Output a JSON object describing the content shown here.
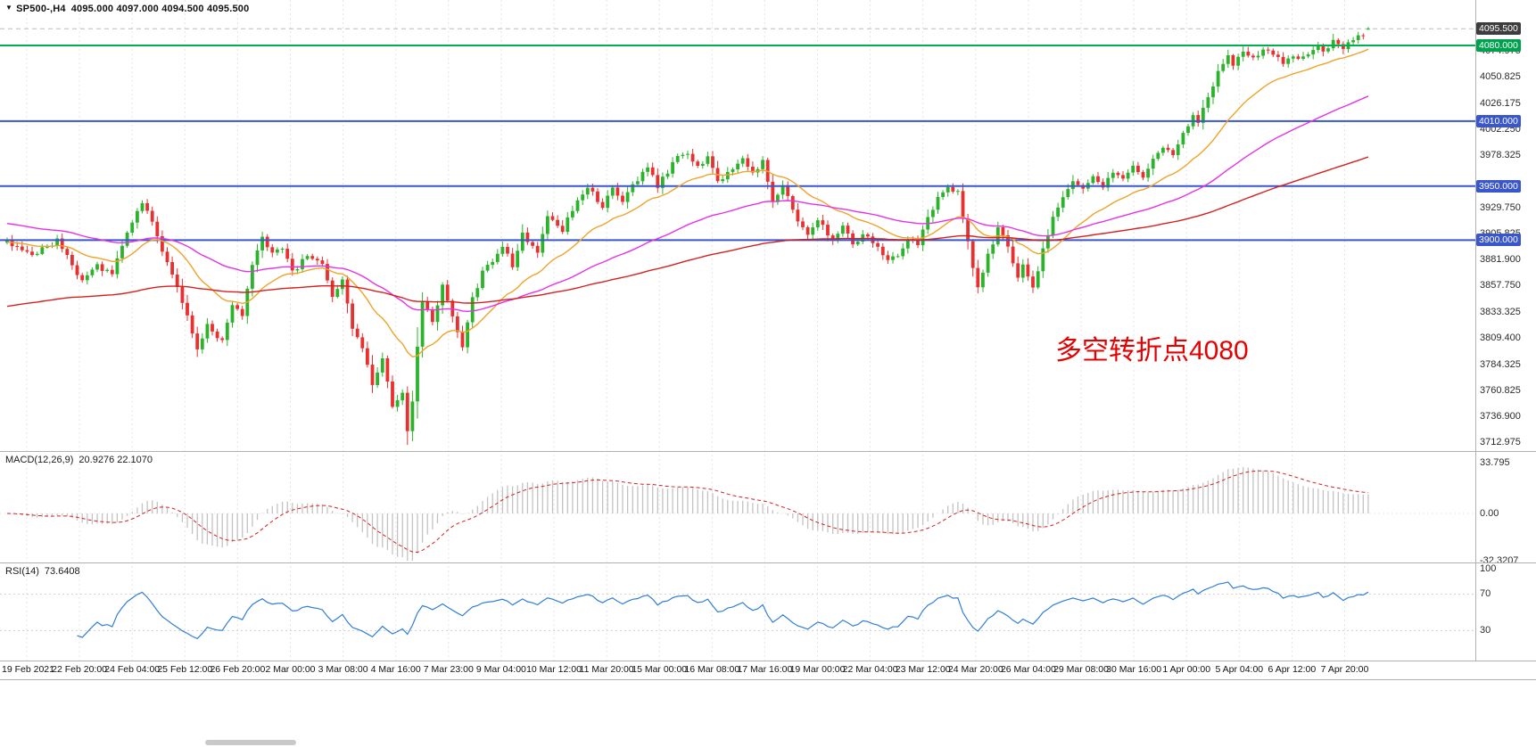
{
  "quote_bar": {
    "marker": "▼",
    "symbol": "SP500-,H4",
    "ohlc": "4095.000 4097.000 4094.500 4095.500"
  },
  "annotation": {
    "text": "多空转折点4080",
    "color": "#e60000"
  },
  "price_axis": {
    "ticks": [
      {
        "text": "4074.975",
        "value": 4074.975
      },
      {
        "text": "4050.825",
        "value": 4050.825
      },
      {
        "text": "4026.175",
        "value": 4026.175
      },
      {
        "text": "4002.250",
        "value": 4002.25
      },
      {
        "text": "3978.325",
        "value": 3978.325
      },
      {
        "text": "3929.750",
        "value": 3929.75
      },
      {
        "text": "3905.825",
        "value": 3905.825
      },
      {
        "text": "3881.900",
        "value": 3881.9
      },
      {
        "text": "3857.750",
        "value": 3857.75
      },
      {
        "text": "3833.325",
        "value": 3833.325
      },
      {
        "text": "3809.400",
        "value": 3809.4
      },
      {
        "text": "3784.325",
        "value": 3784.325
      },
      {
        "text": "3760.825",
        "value": 3760.825
      },
      {
        "text": "3736.900",
        "value": 3736.9
      },
      {
        "text": "3712.975",
        "value": 3712.975
      }
    ],
    "tags": [
      {
        "text": "4095.500",
        "value": 4095.5,
        "bg": "#3d3d3d"
      },
      {
        "text": "4080.000",
        "value": 4080,
        "bg": "#00a14e"
      },
      {
        "text": "4010.000",
        "value": 4010,
        "bg": "#3a56cc"
      },
      {
        "text": "3950.000",
        "value": 3950,
        "bg": "#3a56cc"
      },
      {
        "text": "3900.000",
        "value": 3900,
        "bg": "#3a56cc"
      }
    ]
  },
  "time_axis": {
    "labels": [
      "19 Feb 2021",
      "22 Feb 20:00",
      "24 Feb 04:00",
      "25 Feb 12:00",
      "26 Feb 20:00",
      "2 Mar 00:00",
      "3 Mar 08:00",
      "4 Mar 16:00",
      "7 Mar 23:00",
      "9 Mar 04:00",
      "10 Mar 12:00",
      "11 Mar 20:00",
      "15 Mar 00:00",
      "16 Mar 08:00",
      "17 Mar 16:00",
      "19 Mar 00:00",
      "22 Mar 04:00",
      "23 Mar 12:00",
      "24 Mar 20:00",
      "26 Mar 04:00",
      "29 Mar 08:00",
      "30 Mar 16:00",
      "1 Apr 00:00",
      "5 Apr 04:00",
      "6 Apr 12:00",
      "7 Apr 20:00"
    ]
  },
  "panels": {
    "macd": {
      "title": "MACD(12,26,9)",
      "values": "20.9276 22.1070",
      "ticks": [
        {
          "text": "33.795",
          "value": 33.795
        },
        {
          "text": "0.00",
          "value": 0
        },
        {
          "text": "-32.3207",
          "value": -32.3207
        }
      ]
    },
    "rsi": {
      "title": "RSI(14)",
      "values": "73.6408",
      "ticks": [
        {
          "text": "100",
          "value": 100
        },
        {
          "text": "70",
          "value": 70
        },
        {
          "text": "30",
          "value": 30
        }
      ]
    }
  },
  "colors": {
    "background": "#ffffff",
    "grid": "#e4e4e4",
    "separator": "#b0b0b0",
    "axis_text": "#2a2a2a"
  },
  "chart_data": {
    "type": "candlestick",
    "symbol": "SP500",
    "timeframe": "H4",
    "title": "SP500-,H4",
    "x_range": {
      "start": "19 Feb 2021",
      "end": "7 Apr 2021",
      "bars": 273
    },
    "y_range": {
      "min": 3713,
      "max": 4122
    },
    "last_quote": {
      "open": 4095.0,
      "high": 4097.0,
      "low": 4094.5,
      "close": 4095.5
    },
    "current_price": 4095.5,
    "up_color": "#2bb32b",
    "down_color": "#e83030",
    "close_path_anchors": [
      [
        0,
        3898
      ],
      [
        5,
        3886
      ],
      [
        10,
        3900
      ],
      [
        15,
        3862
      ],
      [
        18,
        3876
      ],
      [
        21,
        3869
      ],
      [
        25,
        3918
      ],
      [
        27,
        3936
      ],
      [
        29,
        3915
      ],
      [
        32,
        3880
      ],
      [
        36,
        3830
      ],
      [
        38,
        3800
      ],
      [
        40,
        3822
      ],
      [
        43,
        3806
      ],
      [
        45,
        3840
      ],
      [
        47,
        3828
      ],
      [
        49,
        3878
      ],
      [
        51,
        3902
      ],
      [
        53,
        3886
      ],
      [
        55,
        3892
      ],
      [
        57,
        3870
      ],
      [
        60,
        3886
      ],
      [
        63,
        3878
      ],
      [
        65,
        3850
      ],
      [
        67,
        3862
      ],
      [
        69,
        3820
      ],
      [
        71,
        3800
      ],
      [
        73,
        3768
      ],
      [
        75,
        3792
      ],
      [
        77,
        3745
      ],
      [
        79,
        3758
      ],
      [
        80,
        3722
      ],
      [
        81,
        3752
      ],
      [
        82,
        3802
      ],
      [
        83,
        3845
      ],
      [
        85,
        3826
      ],
      [
        87,
        3858
      ],
      [
        89,
        3832
      ],
      [
        91,
        3800
      ],
      [
        93,
        3846
      ],
      [
        95,
        3870
      ],
      [
        97,
        3880
      ],
      [
        99,
        3896
      ],
      [
        101,
        3876
      ],
      [
        103,
        3906
      ],
      [
        106,
        3890
      ],
      [
        108,
        3920
      ],
      [
        111,
        3910
      ],
      [
        114,
        3936
      ],
      [
        116,
        3950
      ],
      [
        119,
        3930
      ],
      [
        121,
        3950
      ],
      [
        123,
        3936
      ],
      [
        126,
        3956
      ],
      [
        128,
        3966
      ],
      [
        130,
        3950
      ],
      [
        133,
        3970
      ],
      [
        135,
        3981
      ],
      [
        138,
        3970
      ],
      [
        140,
        3976
      ],
      [
        142,
        3955
      ],
      [
        145,
        3966
      ],
      [
        147,
        3976
      ],
      [
        149,
        3960
      ],
      [
        151,
        3972
      ],
      [
        153,
        3934
      ],
      [
        155,
        3950
      ],
      [
        158,
        3916
      ],
      [
        160,
        3906
      ],
      [
        162,
        3920
      ],
      [
        165,
        3900
      ],
      [
        167,
        3912
      ],
      [
        169,
        3896
      ],
      [
        171,
        3906
      ],
      [
        174,
        3894
      ],
      [
        176,
        3882
      ],
      [
        178,
        3886
      ],
      [
        180,
        3900
      ],
      [
        182,
        3896
      ],
      [
        184,
        3920
      ],
      [
        186,
        3940
      ],
      [
        188,
        3950
      ],
      [
        190,
        3944
      ],
      [
        191,
        3920
      ],
      [
        193,
        3876
      ],
      [
        194,
        3856
      ],
      [
        196,
        3886
      ],
      [
        198,
        3910
      ],
      [
        200,
        3896
      ],
      [
        202,
        3866
      ],
      [
        203,
        3876
      ],
      [
        205,
        3856
      ],
      [
        207,
        3890
      ],
      [
        209,
        3920
      ],
      [
        211,
        3940
      ],
      [
        213,
        3954
      ],
      [
        215,
        3946
      ],
      [
        217,
        3960
      ],
      [
        219,
        3950
      ],
      [
        221,
        3964
      ],
      [
        223,
        3955
      ],
      [
        225,
        3970
      ],
      [
        227,
        3960
      ],
      [
        229,
        3974
      ],
      [
        231,
        3984
      ],
      [
        233,
        3980
      ],
      [
        235,
        4000
      ],
      [
        237,
        4014
      ],
      [
        238,
        4010
      ],
      [
        240,
        4034
      ],
      [
        242,
        4055
      ],
      [
        244,
        4070
      ],
      [
        245,
        4060
      ],
      [
        247,
        4076
      ],
      [
        249,
        4068
      ],
      [
        251,
        4078
      ],
      [
        253,
        4072
      ],
      [
        255,
        4062
      ],
      [
        257,
        4072
      ],
      [
        259,
        4068
      ],
      [
        261,
        4078
      ],
      [
        263,
        4076
      ],
      [
        265,
        4083
      ],
      [
        267,
        4079
      ],
      [
        269,
        4086
      ],
      [
        271,
        4091
      ],
      [
        272,
        4095.5
      ]
    ],
    "horizontal_lines": [
      {
        "price": 4080,
        "color": "#00b050",
        "width": 2,
        "label": "4080.000"
      },
      {
        "price": 4010,
        "color": "#3a56cc",
        "width": 2,
        "label": "4010.000"
      },
      {
        "price": 3950,
        "color": "#3a56cc",
        "width": 2,
        "label": "3950.000"
      },
      {
        "price": 3900,
        "color": "#3a56cc",
        "width": 2,
        "label": "3900.000"
      }
    ],
    "moving_averages": [
      {
        "period": 20,
        "color": "#efa42a",
        "init": 3898
      },
      {
        "period": 60,
        "color": "#e632e6",
        "init": 3916
      },
      {
        "period": 150,
        "color": "#d42020",
        "init": 3838
      }
    ],
    "indicators": [
      {
        "name": "MACD",
        "params": [
          12,
          26,
          9
        ],
        "display_values": [
          20.9276,
          22.107
        ],
        "y_ticks": [
          33.795,
          0,
          -32.3207
        ],
        "histogram_color": "#c2c2c2",
        "signal_color": "#d42020"
      },
      {
        "name": "RSI",
        "params": [
          14
        ],
        "display_value": 73.6408,
        "levels": [
          70,
          30
        ],
        "y_ticks": [
          100,
          70,
          30
        ],
        "line_color": "#2f7ed8"
      }
    ]
  }
}
